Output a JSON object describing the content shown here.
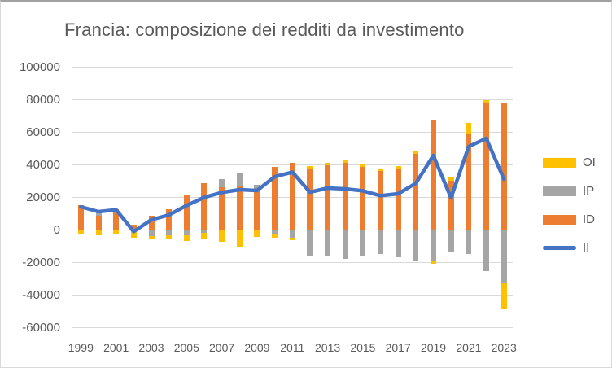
{
  "chart_data": {
    "type": "bar",
    "stacked": true,
    "title": "Francia: composizione dei redditi da investimento",
    "xlabel": "",
    "ylabel": "",
    "ylim": [
      -60000,
      100000
    ],
    "ytick_step": 20000,
    "grid": true,
    "legend_position": "right",
    "categories": [
      "1999",
      "2000",
      "2001",
      "2002",
      "2003",
      "2004",
      "2005",
      "2006",
      "2007",
      "2008",
      "2009",
      "2010",
      "2011",
      "2012",
      "2013",
      "2014",
      "2015",
      "2016",
      "2017",
      "2018",
      "2019",
      "2020",
      "2021",
      "2022",
      "2023"
    ],
    "xtick_labels": [
      "1999",
      "2001",
      "2003",
      "2005",
      "2007",
      "2009",
      "2011",
      "2013",
      "2015",
      "2017",
      "2019",
      "2021",
      "2023"
    ],
    "ytick_labels": [
      "100000",
      "80000",
      "60000",
      "40000",
      "20000",
      "0",
      "-20000",
      "-40000",
      "-60000"
    ],
    "stack_order_from_axis": [
      "ID",
      "IP",
      "OI"
    ],
    "legend_order": [
      "OI",
      "IP",
      "ID",
      "II"
    ],
    "series": [
      {
        "name": "OI",
        "kind": "bar",
        "color": "#FFC000",
        "values": [
          -2700,
          -3700,
          -2900,
          -4800,
          -1500,
          -2500,
          -3700,
          -3800,
          -7500,
          -10500,
          -4700,
          -2200,
          -1300,
          1600,
          1700,
          1700,
          1700,
          1300,
          1700,
          2000,
          -1200,
          2000,
          7400,
          2300,
          -16900
        ]
      },
      {
        "name": "IP",
        "kind": "bar",
        "color": "#A5A5A5",
        "values": [
          0,
          3000,
          0,
          0,
          -4200,
          -3700,
          -3400,
          -2000,
          5000,
          8000,
          2500,
          -3000,
          -5000,
          -16700,
          -15800,
          -18000,
          -16500,
          -15000,
          -17200,
          -19000,
          -19700,
          -13300,
          -15000,
          -25300,
          -32300
        ]
      },
      {
        "name": "ID",
        "kind": "bar",
        "color": "#ED7D31",
        "values": [
          14900,
          8300,
          12500,
          2800,
          8300,
          12400,
          21500,
          28600,
          25800,
          27000,
          25000,
          38700,
          41000,
          37600,
          39300,
          41100,
          38400,
          35800,
          37100,
          46700,
          67000,
          30200,
          58300,
          77300,
          78000
        ]
      },
      {
        "name": "II",
        "kind": "line",
        "color": "#4472C4",
        "values": [
          14000,
          11000,
          12200,
          -1200,
          6000,
          9000,
          14800,
          19800,
          22800,
          24500,
          24000,
          32500,
          35300,
          23000,
          25500,
          25000,
          23800,
          20800,
          22000,
          28400,
          45500,
          19500,
          51000,
          56000,
          31000
        ]
      }
    ],
    "colors": {
      "OI": "#FFC000",
      "IP": "#A5A5A5",
      "ID": "#ED7D31",
      "II": "#4472C4",
      "gridline": "#D9D9D9",
      "text": "#595959"
    }
  }
}
